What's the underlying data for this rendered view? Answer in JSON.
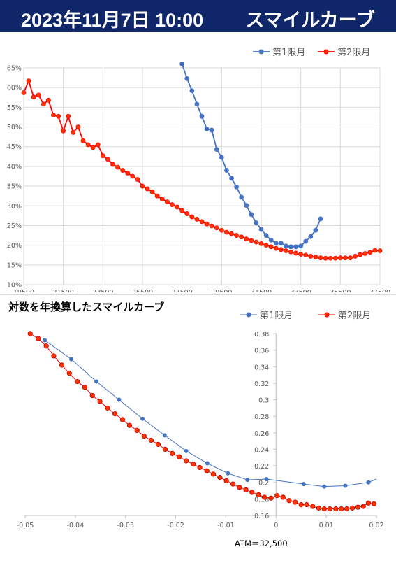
{
  "header": {
    "datetime": "2023年11月7日 10:00",
    "title": "スマイルカーブ",
    "background": "#0f2668"
  },
  "colors": {
    "series1": "#4472c4",
    "series2": "#ff0000",
    "series2_fill": "#ff3300"
  },
  "chart_data": [
    {
      "type": "line",
      "title": "",
      "xlabel": "",
      "ylabel": "",
      "xlim": [
        19500,
        37500
      ],
      "ylim": [
        0.1,
        0.65
      ],
      "x_ticks": [
        "19500",
        "21500",
        "23500",
        "25500",
        "27500",
        "29500",
        "31500",
        "33500",
        "35500",
        "37500"
      ],
      "y_ticks": [
        "10%",
        "15%",
        "20%",
        "25%",
        "30%",
        "35%",
        "40%",
        "45%",
        "50%",
        "55%",
        "60%",
        "65%"
      ],
      "grid": true,
      "legend": "top-right",
      "series": [
        {
          "name": "第1限月",
          "x": [
            27500,
            27750,
            28000,
            28250,
            28500,
            28750,
            29000,
            29250,
            29500,
            29750,
            30000,
            30250,
            30500,
            30750,
            31000,
            31250,
            31500,
            31750,
            32000,
            32250,
            32500,
            32750,
            33000,
            33250,
            33500,
            33750,
            34000,
            34250,
            34500
          ],
          "y": [
            0.66,
            0.623,
            0.592,
            0.558,
            0.527,
            0.495,
            0.492,
            0.443,
            0.423,
            0.39,
            0.37,
            0.348,
            0.322,
            0.301,
            0.278,
            0.257,
            0.24,
            0.225,
            0.213,
            0.205,
            0.205,
            0.198,
            0.196,
            0.196,
            0.198,
            0.21,
            0.222,
            0.238,
            0.267
          ]
        },
        {
          "name": "第2限月",
          "x": [
            19500,
            19750,
            20000,
            20250,
            20500,
            20750,
            21000,
            21250,
            21500,
            21750,
            22000,
            22250,
            22500,
            22750,
            23000,
            23250,
            23500,
            23750,
            24000,
            24250,
            24500,
            24750,
            25000,
            25250,
            25500,
            25750,
            26000,
            26250,
            26500,
            26750,
            27000,
            27250,
            27500,
            27750,
            28000,
            28250,
            28500,
            28750,
            29000,
            29250,
            29500,
            29750,
            30000,
            30250,
            30500,
            30750,
            31000,
            31250,
            31500,
            31750,
            32000,
            32250,
            32500,
            32750,
            33000,
            33250,
            33500,
            33750,
            34000,
            34250,
            34500,
            34750,
            35000,
            35250,
            35500,
            35750,
            36000,
            36250,
            36500,
            36750,
            37000,
            37250,
            37500
          ],
          "y": [
            0.587,
            0.617,
            0.576,
            0.581,
            0.558,
            0.568,
            0.53,
            0.527,
            0.49,
            0.527,
            0.486,
            0.5,
            0.465,
            0.455,
            0.448,
            0.455,
            0.427,
            0.418,
            0.405,
            0.398,
            0.39,
            0.383,
            0.375,
            0.367,
            0.35,
            0.343,
            0.335,
            0.325,
            0.317,
            0.31,
            0.303,
            0.297,
            0.288,
            0.28,
            0.272,
            0.266,
            0.26,
            0.254,
            0.249,
            0.244,
            0.238,
            0.233,
            0.229,
            0.225,
            0.221,
            0.216,
            0.212,
            0.208,
            0.204,
            0.2,
            0.196,
            0.192,
            0.189,
            0.186,
            0.183,
            0.18,
            0.177,
            0.175,
            0.172,
            0.17,
            0.168,
            0.167,
            0.167,
            0.167,
            0.168,
            0.168,
            0.168,
            0.172,
            0.176,
            0.179,
            0.182,
            0.187,
            0.186
          ]
        }
      ]
    },
    {
      "type": "scatter",
      "title": "対数を年換算したスマイルカーブ",
      "xlabel": "",
      "ylabel": "",
      "xlim": [
        -0.05,
        0.02
      ],
      "ylim": [
        0.16,
        0.38
      ],
      "x_ticks": [
        "-0.05",
        "-0.04",
        "-0.03",
        "-0.02",
        "-0.01",
        "0",
        "0.01",
        "0.02"
      ],
      "y_ticks": [
        "0.16",
        "0.18",
        "0.2",
        "0.22",
        "0.24",
        "0.26",
        "0.28",
        "0.3",
        "0.32",
        "0.34",
        "0.36",
        "0.38"
      ],
      "grid": false,
      "legend": "top-right",
      "annotation": "ATM＝32,500",
      "series": [
        {
          "name": "第1限月",
          "x": [
            -0.0461,
            -0.0408,
            -0.0358,
            -0.0313,
            -0.0266,
            -0.0222,
            -0.0179,
            -0.0137,
            -0.0096,
            -0.0057,
            -0.0019,
            0.0055,
            0.0096,
            0.0138,
            0.0184,
            0.02
          ],
          "y": [
            0.372,
            0.349,
            0.322,
            0.3,
            0.277,
            0.257,
            0.238,
            0.223,
            0.211,
            0.203,
            0.204,
            0.198,
            0.195,
            0.196,
            0.2,
            0.204
          ]
        },
        {
          "name": "第2限月",
          "x": [
            -0.049,
            -0.0474,
            -0.0458,
            -0.0443,
            -0.0427,
            -0.0412,
            -0.0396,
            -0.0381,
            -0.0366,
            -0.0351,
            -0.0336,
            -0.0321,
            -0.0306,
            -0.0292,
            -0.0277,
            -0.0263,
            -0.0249,
            -0.0235,
            -0.0221,
            -0.0207,
            -0.0193,
            -0.0179,
            -0.0165,
            -0.0152,
            -0.0138,
            -0.0125,
            -0.0112,
            -0.0099,
            -0.0086,
            -0.0073,
            -0.006,
            -0.0048,
            -0.0035,
            -0.0023,
            -0.001,
            0.0002,
            0.0014,
            0.0026,
            0.0038,
            0.005,
            0.0061,
            0.0073,
            0.0085,
            0.0096,
            0.0107,
            0.0119,
            0.013,
            0.0141,
            0.0152,
            0.0163,
            0.0174,
            0.0184,
            0.0195
          ],
          "y": [
            0.38,
            0.374,
            0.365,
            0.353,
            0.342,
            0.332,
            0.322,
            0.315,
            0.305,
            0.298,
            0.29,
            0.283,
            0.276,
            0.269,
            0.263,
            0.256,
            0.251,
            0.246,
            0.24,
            0.235,
            0.231,
            0.226,
            0.222,
            0.218,
            0.214,
            0.21,
            0.206,
            0.202,
            0.198,
            0.194,
            0.191,
            0.188,
            0.185,
            0.182,
            0.181,
            0.184,
            0.182,
            0.178,
            0.176,
            0.173,
            0.173,
            0.171,
            0.169,
            0.168,
            0.168,
            0.168,
            0.168,
            0.168,
            0.169,
            0.17,
            0.171,
            0.175,
            0.174
          ]
        }
      ]
    }
  ]
}
